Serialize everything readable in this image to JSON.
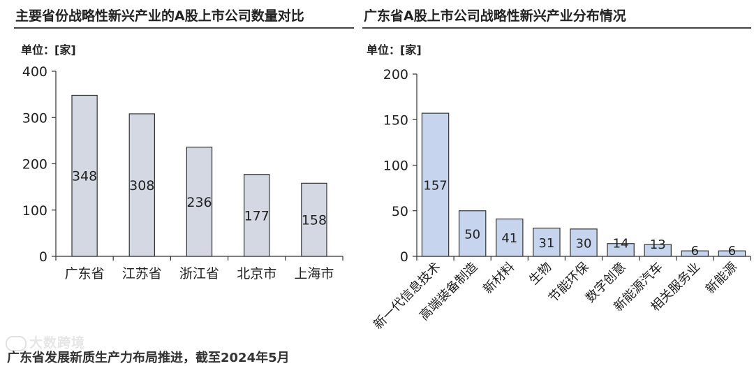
{
  "charts_meta": {
    "left_unit": "单位：[家]",
    "right_unit": "单位：[家]"
  },
  "chart_data": [
    {
      "type": "bar",
      "title": "主要省份战略性新兴产业的A股上市公司数量对比",
      "categories": [
        "广东省",
        "江苏省",
        "浙江省",
        "北京市",
        "上海市"
      ],
      "values": [
        348,
        308,
        236,
        177,
        158
      ],
      "ylim": [
        0,
        400
      ],
      "yticks": [
        0,
        100,
        200,
        300,
        400
      ],
      "bar_color": "#d3d8e3",
      "grid": false
    },
    {
      "type": "bar",
      "title": "广东省A股上市公司战略性新兴产业分布情况",
      "categories": [
        "新一代信息技术",
        "高端装备制造",
        "新材料",
        "生物",
        "节能环保",
        "数字创意",
        "新能源汽车",
        "相关服务业",
        "新能源"
      ],
      "values": [
        157,
        50,
        41,
        31,
        30,
        14,
        13,
        6,
        6
      ],
      "ylim": [
        0,
        200
      ],
      "yticks": [
        0,
        50,
        100,
        150,
        200
      ],
      "bar_color": "#c6d4ee",
      "grid": false
    }
  ],
  "footer": {
    "watermark": "大数跨境",
    "cut_text": "广东省发展新质生产力布局推进，截至2024年5月"
  }
}
